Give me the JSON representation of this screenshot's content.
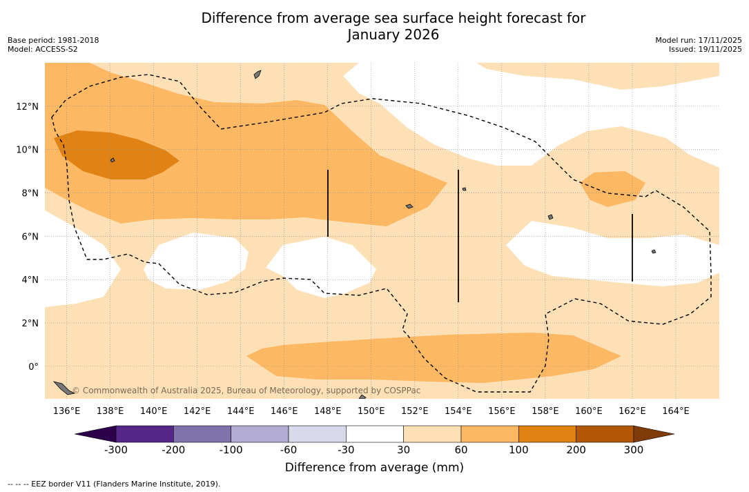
{
  "title": {
    "line1": "Difference from average sea surface height forecast for",
    "line2": "January 2026"
  },
  "meta": {
    "base_period": "Base period: 1981-2018",
    "model": "Model: ACCESS-S2",
    "model_run": "Model run: 17/11/2025",
    "issued": "Issued: 19/11/2025"
  },
  "map": {
    "lon_range": [
      135,
      166
    ],
    "lat_range": [
      -1.5,
      14
    ],
    "lon_ticks": [
      "136°E",
      "138°E",
      "140°E",
      "142°E",
      "144°E",
      "146°E",
      "148°E",
      "150°E",
      "152°E",
      "154°E",
      "156°E",
      "158°E",
      "160°E",
      "162°E",
      "164°E"
    ],
    "lat_ticks": [
      "12°N",
      "10°N",
      "8°N",
      "6°N",
      "4°N",
      "2°N",
      "0°"
    ],
    "copyright": "© Commonwealth of Australia 2025, Bureau of Meteorology, supported by COSPPac"
  },
  "colorbar": {
    "title": "Difference from average (mm)",
    "labels": [
      "-300",
      "-200",
      "-100",
      "-60",
      "-30",
      "30",
      "60",
      "100",
      "200",
      "300"
    ],
    "colors": {
      "below_min": "#2d004b",
      "bins": [
        "#542788",
        "#8073ac",
        "#b2abd2",
        "#d8daeb",
        "#ffffff",
        "#fee0b6",
        "#fdb863",
        "#e08214",
        "#b35806"
      ],
      "above_max": "#7f3b08"
    }
  },
  "footnote": "--  --  -- EEZ border V11 (Flanders Marine Institute, 2019)."
}
